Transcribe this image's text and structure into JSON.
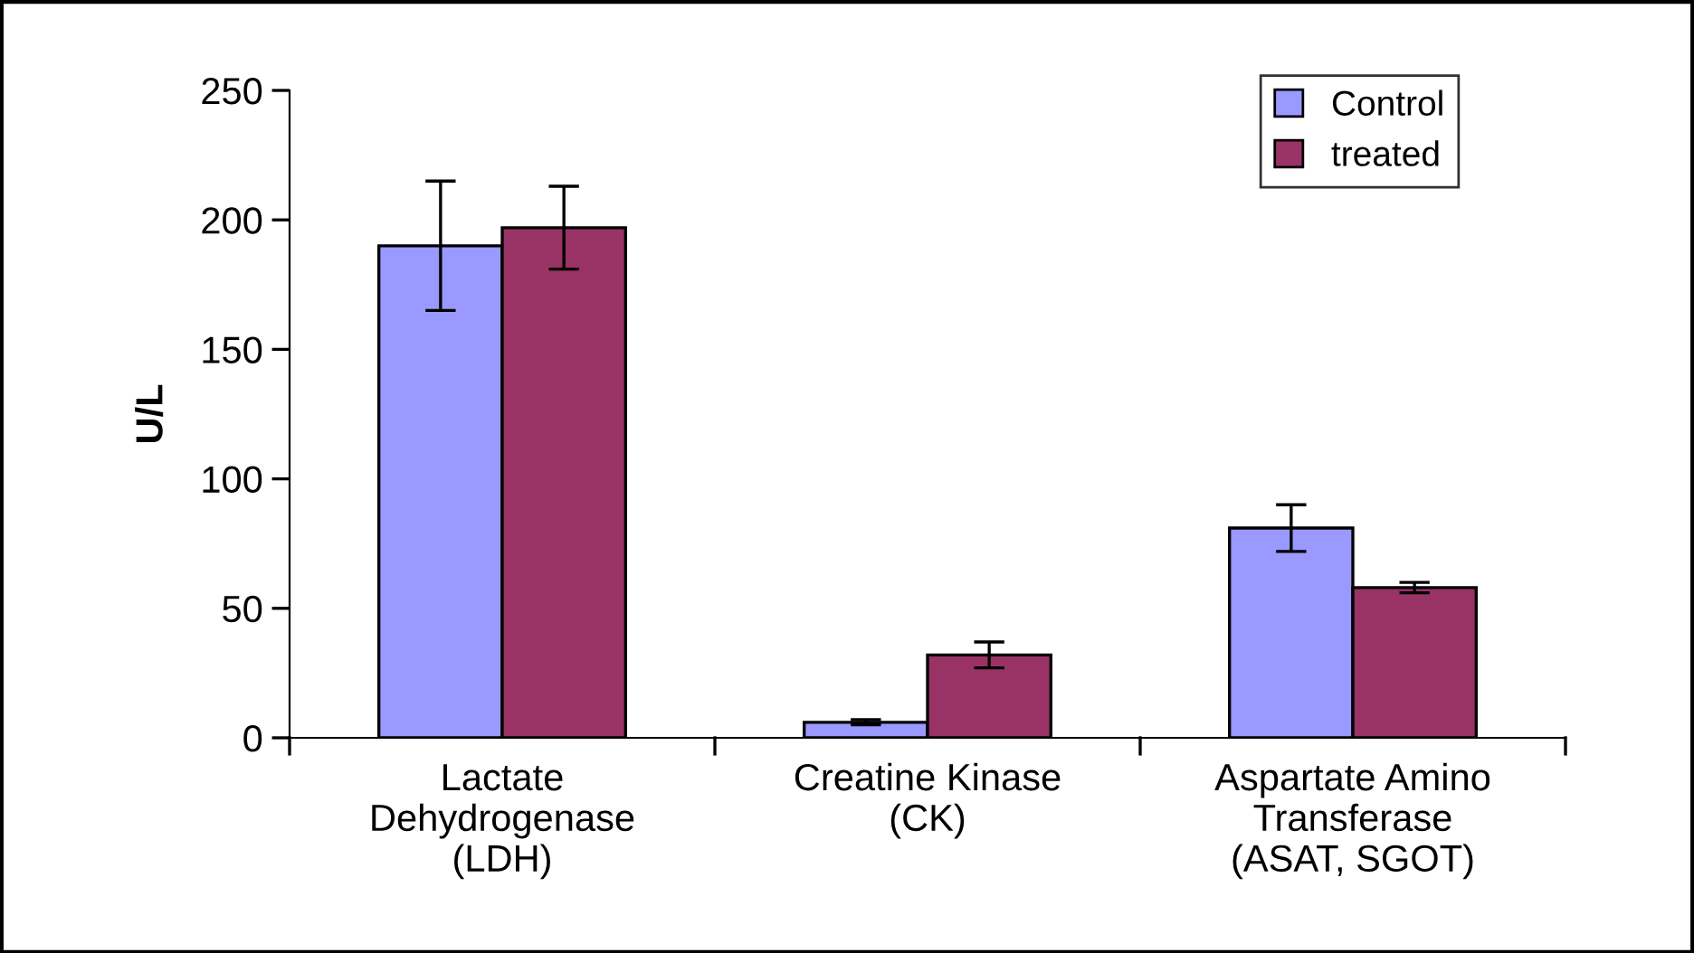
{
  "chart_data": {
    "type": "bar",
    "categories": [
      "Lactate\nDehydrogenase\n(LDH)",
      "Creatine Kinase\n(CK)",
      "Aspartate Amino\nTransferase\n(ASAT, SGOT)"
    ],
    "ylabel": "U/L",
    "series": [
      {
        "name": "Control",
        "color": "#9999ff",
        "values": [
          190,
          6,
          81
        ],
        "errors": [
          25,
          1,
          9
        ]
      },
      {
        "name": "treated",
        "color": "#993366",
        "values": [
          197,
          32,
          58
        ],
        "errors": [
          16,
          5,
          2
        ]
      }
    ],
    "ylim": [
      0,
      250
    ],
    "yticks": [
      0,
      50,
      100,
      150,
      200,
      250
    ],
    "grid": false,
    "legend": "top right"
  }
}
